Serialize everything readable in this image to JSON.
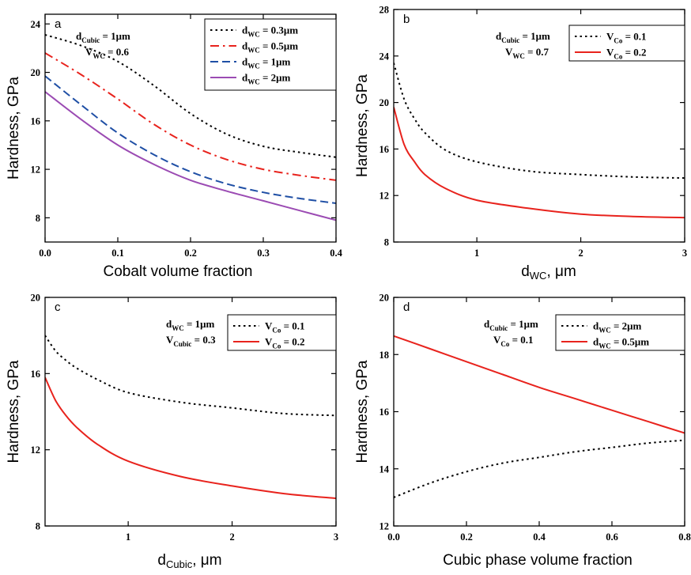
{
  "chart_data": [
    {
      "type": "line",
      "panel_label": "a",
      "xlabel": "Cobalt volume fraction",
      "ylabel": "Hardness, GPa",
      "xlim": [
        0,
        0.4
      ],
      "ylim": [
        6,
        24.8
      ],
      "xticks": [
        0.0,
        0.1,
        0.2,
        0.3,
        0.4
      ],
      "xtick_labels": [
        "0.0",
        "0.1",
        "0.2",
        "0.3",
        "0.4"
      ],
      "yticks": [
        8,
        12,
        16,
        20,
        24
      ],
      "ytick_labels": [
        "8",
        "12",
        "16",
        "20",
        "24"
      ],
      "params": [
        {
          "base": "d",
          "sub": "Cubic",
          "rest": " = 1μm"
        },
        {
          "base": "V",
          "sub": "WC",
          "rest": " = 0.6"
        }
      ],
      "legend_position": "top-right",
      "series": [
        {
          "name_base": "d",
          "name_sub": "WC",
          "name_rest": " = 0.3μm",
          "color": "#000000",
          "dash": "dot",
          "x": [
            0,
            0.05,
            0.1,
            0.15,
            0.2,
            0.25,
            0.3,
            0.35,
            0.4
          ],
          "y": [
            23.1,
            22.2,
            20.9,
            18.9,
            16.6,
            14.9,
            13.9,
            13.4,
            13.0
          ]
        },
        {
          "name_base": "d",
          "name_sub": "WC",
          "name_rest": " = 0.5μm",
          "color": "#e8231d",
          "dash": "dashdot",
          "x": [
            0,
            0.05,
            0.1,
            0.15,
            0.2,
            0.25,
            0.3,
            0.35,
            0.4
          ],
          "y": [
            21.6,
            19.8,
            17.8,
            15.7,
            14.0,
            12.8,
            12.0,
            11.5,
            11.1
          ]
        },
        {
          "name_base": "d",
          "name_sub": "WC",
          "name_rest": " = 1μm",
          "color": "#1f4fa5",
          "dash": "dash",
          "x": [
            0,
            0.05,
            0.1,
            0.15,
            0.2,
            0.25,
            0.3,
            0.35,
            0.4
          ],
          "y": [
            19.7,
            17.3,
            15.0,
            13.2,
            11.8,
            10.8,
            10.1,
            9.6,
            9.2
          ]
        },
        {
          "name_base": "d",
          "name_sub": "WC",
          "name_rest": " = 2μm",
          "color": "#9b4bb3",
          "dash": "solid",
          "x": [
            0,
            0.05,
            0.1,
            0.15,
            0.2,
            0.25,
            0.3,
            0.35,
            0.4
          ],
          "y": [
            18.4,
            16.1,
            14.0,
            12.4,
            11.1,
            10.2,
            9.4,
            8.6,
            7.8
          ]
        }
      ]
    },
    {
      "type": "line",
      "panel_label": "b",
      "xlabel_base": "d",
      "xlabel_sub": "WC",
      "xlabel_rest": ", μm",
      "ylabel": "Hardness, GPa",
      "xlim": [
        0.2,
        3
      ],
      "ylim": [
        8,
        28
      ],
      "xticks": [
        1,
        2,
        3
      ],
      "xtick_labels": [
        "1",
        "2",
        "3"
      ],
      "yticks": [
        8,
        12,
        16,
        20,
        24,
        28
      ],
      "ytick_labels": [
        "8",
        "12",
        "16",
        "20",
        "24",
        "28"
      ],
      "params": [
        {
          "base": "d",
          "sub": "Cubic",
          "rest": " = 1μm"
        },
        {
          "base": "V",
          "sub": "WC",
          "rest": " = 0.7"
        }
      ],
      "legend_position": "top-right",
      "series": [
        {
          "name_base": "V",
          "name_sub": "Co",
          "name_rest": " = 0.1",
          "color": "#000000",
          "dash": "dot",
          "x": [
            0.2,
            0.3,
            0.4,
            0.5,
            0.7,
            1.0,
            1.5,
            2.0,
            2.5,
            3.0
          ],
          "y": [
            23.4,
            20.3,
            18.6,
            17.4,
            15.9,
            14.9,
            14.1,
            13.8,
            13.6,
            13.5
          ]
        },
        {
          "name_base": "V",
          "name_sub": "Co",
          "name_rest": " = 0.2",
          "color": "#e8231d",
          "dash": "solid",
          "x": [
            0.2,
            0.3,
            0.4,
            0.5,
            0.7,
            1.0,
            1.5,
            2.0,
            2.5,
            3.0
          ],
          "y": [
            19.6,
            16.4,
            14.9,
            13.8,
            12.6,
            11.6,
            10.9,
            10.4,
            10.2,
            10.1
          ]
        }
      ]
    },
    {
      "type": "line",
      "panel_label": "c",
      "xlabel_base": "d",
      "xlabel_sub": "Cubic",
      "xlabel_rest": ", μm",
      "ylabel": "Hardness, GPa",
      "xlim": [
        0.2,
        3
      ],
      "ylim": [
        8,
        20
      ],
      "xticks": [
        1,
        2,
        3
      ],
      "xtick_labels": [
        "1",
        "2",
        "3"
      ],
      "yticks": [
        8,
        12,
        16,
        20
      ],
      "ytick_labels": [
        "8",
        "12",
        "16",
        "20"
      ],
      "params": [
        {
          "base": "d",
          "sub": "WC",
          "rest": " = 1μm"
        },
        {
          "base": "V",
          "sub": "Cubic",
          "rest": " = 0.3"
        }
      ],
      "legend_position": "top-right",
      "series": [
        {
          "name_base": "V",
          "name_sub": "Co",
          "name_rest": " = 0.1",
          "color": "#000000",
          "dash": "dot",
          "x": [
            0.2,
            0.3,
            0.4,
            0.5,
            0.7,
            1.0,
            1.5,
            2.0,
            2.5,
            3.0
          ],
          "y": [
            18.0,
            17.2,
            16.7,
            16.3,
            15.7,
            15.0,
            14.5,
            14.2,
            13.9,
            13.8
          ]
        },
        {
          "name_base": "V",
          "name_sub": "Co",
          "name_rest": " = 0.2",
          "color": "#e8231d",
          "dash": "solid",
          "x": [
            0.2,
            0.3,
            0.4,
            0.5,
            0.7,
            1.0,
            1.5,
            2.0,
            2.5,
            3.0
          ],
          "y": [
            15.8,
            14.6,
            13.8,
            13.2,
            12.3,
            11.4,
            10.6,
            10.1,
            9.7,
            9.45
          ]
        }
      ]
    },
    {
      "type": "line",
      "panel_label": "d",
      "xlabel": "Cubic phase volume fraction",
      "ylabel": "Hardness, GPa",
      "xlim": [
        0,
        0.8
      ],
      "ylim": [
        12,
        20
      ],
      "xticks": [
        0,
        0.2,
        0.4,
        0.6,
        0.8
      ],
      "xtick_labels": [
        "0.0",
        "0.2",
        "0.4",
        "0.6",
        "0.8"
      ],
      "yticks": [
        12,
        14,
        16,
        18,
        20
      ],
      "ytick_labels": [
        "12",
        "14",
        "16",
        "18",
        "20"
      ],
      "params": [
        {
          "base": "d",
          "sub": "Cubic",
          "rest": " = 1μm"
        },
        {
          "base": "V",
          "sub": "Co",
          "rest": " = 0.1"
        }
      ],
      "legend_position": "top-right",
      "series": [
        {
          "name_base": "d",
          "name_sub": "WC",
          "name_rest": " = 2μm",
          "color": "#000000",
          "dash": "dot",
          "x": [
            0,
            0.1,
            0.2,
            0.3,
            0.4,
            0.5,
            0.6,
            0.7,
            0.8
          ],
          "y": [
            13.0,
            13.5,
            13.9,
            14.2,
            14.4,
            14.6,
            14.75,
            14.9,
            15.0
          ]
        },
        {
          "name_base": "d",
          "name_sub": "WC",
          "name_rest": " = 0.5μm",
          "color": "#e8231d",
          "dash": "solid",
          "x": [
            0,
            0.1,
            0.2,
            0.3,
            0.4,
            0.5,
            0.6,
            0.7,
            0.8
          ],
          "y": [
            18.65,
            18.2,
            17.75,
            17.3,
            16.85,
            16.45,
            16.05,
            15.65,
            15.25
          ]
        }
      ]
    }
  ]
}
